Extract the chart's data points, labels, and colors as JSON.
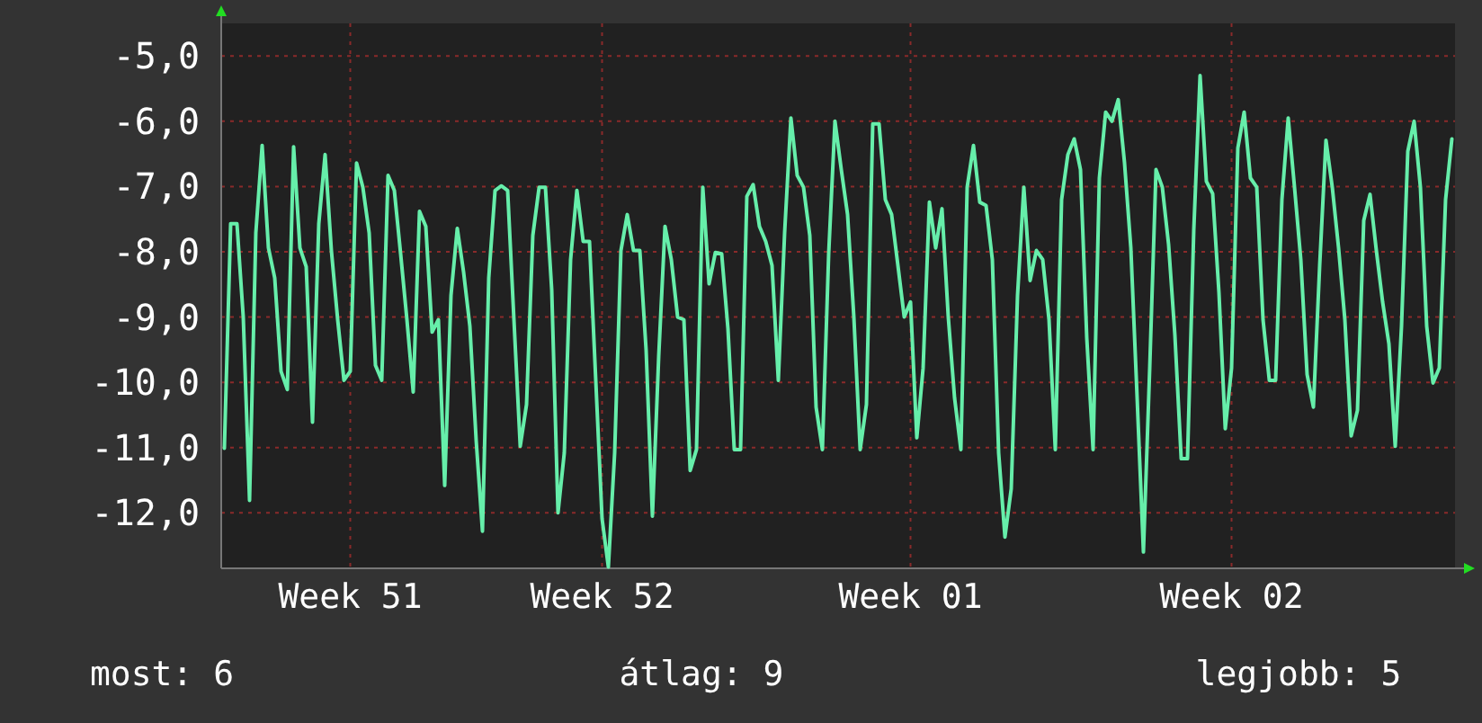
{
  "chart_data": {
    "type": "line",
    "categories": [
      null,
      null,
      null,
      null,
      null,
      null,
      null,
      null,
      null,
      null,
      null,
      null,
      null,
      null,
      null,
      null,
      null,
      null,
      null,
      null,
      "Week 51",
      null,
      null,
      null,
      null,
      null,
      null,
      null,
      null,
      null,
      null,
      null,
      null,
      null,
      null,
      null,
      null,
      null,
      null,
      null,
      null,
      null,
      null,
      null,
      null,
      null,
      null,
      null,
      null,
      null,
      null,
      null,
      null,
      null,
      null,
      null,
      null,
      null,
      null,
      null,
      "Week 52",
      null,
      null,
      null,
      null,
      null,
      null,
      null,
      null,
      null,
      null,
      null,
      null,
      null,
      null,
      null,
      null,
      null,
      null,
      null,
      null,
      null,
      null,
      null,
      null,
      null,
      null,
      null,
      null,
      null,
      null,
      null,
      null,
      null,
      null,
      null,
      null,
      null,
      null,
      null,
      null,
      null,
      null,
      null,
      null,
      null,
      null,
      null,
      null,
      "Week 01",
      null,
      null,
      null,
      null,
      null,
      null,
      null,
      null,
      null,
      null,
      null,
      null,
      null,
      null,
      null,
      null,
      null,
      null,
      null,
      null,
      null,
      null,
      null,
      null,
      null,
      null,
      null,
      null,
      null,
      null,
      null,
      null,
      null,
      null,
      null,
      null,
      null,
      null,
      null,
      null,
      null,
      null,
      null,
      null,
      null,
      null,
      null,
      null,
      null,
      null,
      "Week 02",
      null,
      null,
      null,
      null,
      null,
      null,
      null,
      null,
      null,
      null,
      null,
      null,
      null,
      null,
      null,
      null,
      null,
      null,
      null,
      null,
      null,
      null,
      null,
      null,
      null,
      null,
      null,
      null,
      null,
      null,
      null,
      null,
      null,
      null,
      null
    ],
    "series": [
      {
        "color": "#66eeaa",
        "values": [
          -11.01,
          -7.57,
          -7.57,
          -9.0,
          -11.81,
          -7.71,
          -6.37,
          -7.94,
          -8.4,
          -9.83,
          -10.11,
          -6.39,
          -7.94,
          -8.23,
          -10.61,
          -7.57,
          -6.51,
          -7.98,
          -9.04,
          -9.97,
          -9.83,
          -6.64,
          -7.01,
          -7.71,
          -9.74,
          -9.97,
          -6.83,
          -7.06,
          -8.03,
          -9.04,
          -10.15,
          -7.38,
          -7.61,
          -9.23,
          -9.04,
          -11.58,
          -8.67,
          -7.64,
          -8.31,
          -9.14,
          -10.89,
          -12.28,
          -8.4,
          -7.06,
          -6.99,
          -7.06,
          -9.04,
          -10.98,
          -10.34,
          -7.75,
          -7.01,
          -7.01,
          -8.58,
          -12.0,
          -11.08,
          -8.12,
          -7.06,
          -7.84,
          -7.84,
          -9.97,
          -12.09,
          -12.83,
          -11.08,
          -7.98,
          -7.43,
          -7.98,
          -7.98,
          -9.51,
          -12.05,
          -9.6,
          -7.61,
          -8.12,
          -9.0,
          -9.04,
          -11.35,
          -11.03,
          -7.01,
          -8.49,
          -8.01,
          -8.03,
          -9.18,
          -11.03,
          -11.03,
          -7.15,
          -6.97,
          -7.61,
          -7.84,
          -8.21,
          -9.97,
          -7.71,
          -5.95,
          -6.83,
          -7.01,
          -7.75,
          -10.38,
          -11.03,
          -8.03,
          -6.0,
          -6.74,
          -7.43,
          -9.0,
          -11.03,
          -10.34,
          -6.04,
          -6.04,
          -7.2,
          -7.43,
          -8.21,
          -9.0,
          -8.77,
          -10.85,
          -9.78,
          -7.24,
          -7.94,
          -7.34,
          -9.0,
          -10.24,
          -11.03,
          -7.01,
          -6.37,
          -7.24,
          -7.29,
          -8.12,
          -11.08,
          -12.37,
          -11.63,
          -8.67,
          -7.01,
          -8.44,
          -7.98,
          -8.12,
          -9.04,
          -11.03,
          -7.2,
          -6.51,
          -6.27,
          -6.74,
          -9.32,
          -11.03,
          -6.87,
          -5.86,
          -6.0,
          -5.67,
          -6.64,
          -7.94,
          -10.24,
          -12.6,
          -9.78,
          -6.74,
          -7.01,
          -7.89,
          -9.28,
          -11.17,
          -11.17,
          -7.66,
          -5.3,
          -6.92,
          -7.11,
          -8.63,
          -10.71,
          -9.78,
          -6.41,
          -5.86,
          -6.87,
          -7.01,
          -9.04,
          -9.97,
          -9.97,
          -7.2,
          -5.95,
          -7.01,
          -8.12,
          -9.88,
          -10.38,
          -8.21,
          -6.29,
          -7.01,
          -7.94,
          -9.04,
          -10.82,
          -10.43,
          -7.52,
          -7.12,
          -7.98,
          -8.77,
          -9.41,
          -10.98,
          -9.14,
          -6.46,
          -6.0,
          -7.01,
          -9.14,
          -10.01,
          -9.78,
          -7.2,
          -6.27
        ]
      }
    ],
    "ylim": [
      -12.85,
      -4.5
    ],
    "yticks": [
      {
        "value": -12,
        "label": "-12,0"
      },
      {
        "value": -11,
        "label": "-11,0"
      },
      {
        "value": -10,
        "label": "-10,0"
      },
      {
        "value": -9,
        "label": "-9,0"
      },
      {
        "value": -8,
        "label": "-8,0"
      },
      {
        "value": -7,
        "label": "-7,0"
      },
      {
        "value": -6,
        "label": "-6,0"
      },
      {
        "value": -5,
        "label": "-5,0"
      }
    ],
    "grid": true,
    "annotations": [
      "most: 6",
      "átlag: 9",
      "legjobb: 5"
    ]
  }
}
